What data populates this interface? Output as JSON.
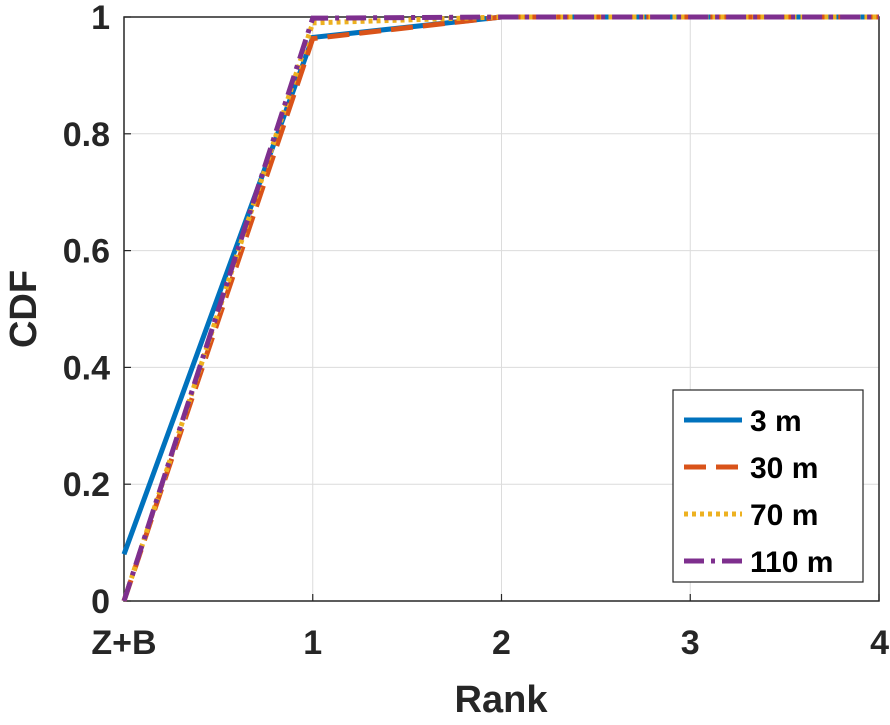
{
  "chart_data": {
    "type": "line",
    "xlabel": "Rank",
    "ylabel": "CDF",
    "categories": [
      "Z+B",
      "1",
      "2",
      "3",
      "4"
    ],
    "x": [
      0,
      1,
      2,
      3,
      4
    ],
    "ylim": [
      0,
      1
    ],
    "yticks": [
      "0",
      "0.2",
      "0.4",
      "0.6",
      "0.8",
      "1"
    ],
    "grid": true,
    "legend_position": "bottom-right",
    "series": [
      {
        "name": "3 m",
        "values": [
          0.08,
          0.965,
          1,
          1,
          1
        ],
        "color": "#0072BD",
        "style": "solid"
      },
      {
        "name": "30 m",
        "values": [
          0,
          0.963,
          1,
          1,
          1
        ],
        "color": "#D95319",
        "style": "dashed"
      },
      {
        "name": "70 m",
        "values": [
          0,
          0.99,
          1,
          1,
          1
        ],
        "color": "#EDB120",
        "style": "dotted"
      },
      {
        "name": "110 m",
        "values": [
          0,
          0.998,
          1,
          1,
          1
        ],
        "color": "#7E2F8E",
        "style": "dashdot"
      }
    ]
  }
}
